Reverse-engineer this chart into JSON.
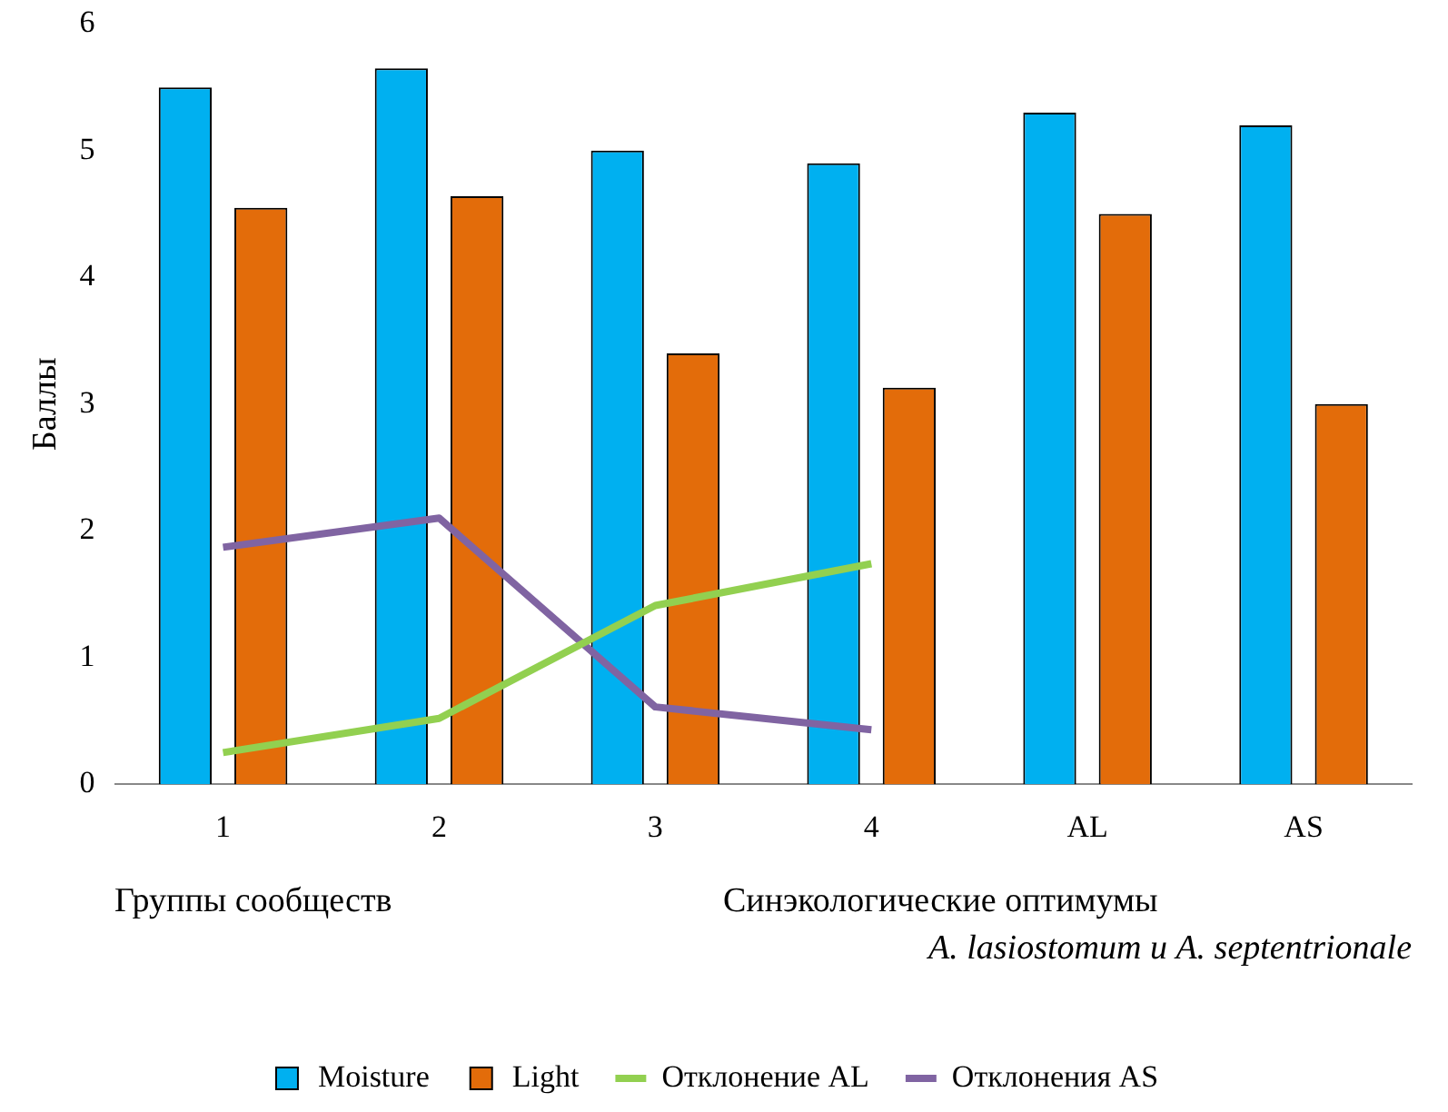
{
  "chart_data": {
    "type": "bar",
    "ylabel": "Баллы",
    "categories": [
      "1",
      "2",
      "3",
      "4",
      "AL",
      "AS"
    ],
    "series": [
      {
        "name": "Moisture",
        "color": "#00b0f0",
        "values": [
          5.5,
          5.65,
          5.0,
          4.9,
          5.3,
          5.2
        ]
      },
      {
        "name": "Light",
        "color": "#e36c0a",
        "values": [
          4.55,
          4.64,
          3.4,
          3.13,
          4.5,
          3.0
        ]
      },
      {
        "name": "Отклонение AL",
        "type": "line",
        "color": "#92d050",
        "values": [
          0.25,
          0.52,
          1.41,
          1.74,
          null,
          null
        ]
      },
      {
        "name": "Отклонения AS",
        "type": "line",
        "color": "#8064a2",
        "values": [
          1.87,
          2.1,
          0.61,
          0.43,
          null,
          null
        ]
      }
    ],
    "ylim": [
      0,
      6
    ],
    "yticks": [
      0,
      1,
      2,
      3,
      4,
      5,
      6
    ],
    "grid": false,
    "legend": "bottom",
    "marker": "none",
    "annotations": [
      "Группы сообществ",
      "Синэкологические оптимумы",
      "A. lasiostomum и A. septentrionale"
    ]
  }
}
